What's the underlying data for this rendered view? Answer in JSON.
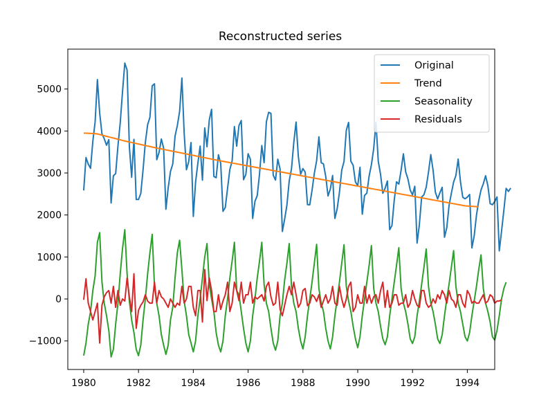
{
  "chart_data": {
    "type": "line",
    "title": "Reconstructed series",
    "xlabel": "",
    "ylabel": "",
    "xlim": [
      1979.42,
      1995.0
    ],
    "ylim": [
      -1680,
      5950
    ],
    "x_ticks": [
      1980,
      1982,
      1984,
      1986,
      1988,
      1990,
      1992,
      1994
    ],
    "x_tick_labels": [
      "1980",
      "1982",
      "1984",
      "1986",
      "1988",
      "1990",
      "1992",
      "1994"
    ],
    "y_ticks": [
      -1000,
      0,
      1000,
      2000,
      3000,
      4000,
      5000
    ],
    "y_tick_labels": [
      "−1000",
      "0",
      "1000",
      "2000",
      "3000",
      "4000",
      "5000"
    ],
    "grid": false,
    "legend_position": "top-right",
    "x_start": 1980.0,
    "x_step_months": 1,
    "num_points": 174,
    "series": [
      {
        "name": "Original",
        "color": "#1f77b4",
        "values": [
          2585,
          3368,
          3210,
          3111,
          3756,
          4216,
          5225,
          4426,
          3932,
          3816,
          3661,
          3795,
          2285,
          2934,
          2985,
          3646,
          4198,
          4935,
          5618,
          5454,
          3624,
          2898,
          3802,
          2369,
          2369,
          2511,
          3079,
          3728,
          4151,
          4326,
          5076,
          5123,
          3316,
          3488,
          3810,
          3594,
          2136,
          2647,
          3036,
          3214,
          3880,
          4128,
          4464,
          5263,
          3949,
          3078,
          3273,
          3726,
          1965,
          2788,
          3236,
          3641,
          2829,
          4074,
          3625,
          4267,
          4517,
          2917,
          2886,
          3434,
          3229,
          2086,
          2178,
          2633,
          3084,
          3287,
          4107,
          3638,
          4130,
          4249,
          2840,
          2963,
          3459,
          3325,
          1917,
          2324,
          2463,
          2976,
          3654,
          3245,
          4217,
          4445,
          4420,
          2946,
          2832,
          3329,
          3093,
          1607,
          1902,
          2237,
          2812,
          3097,
          3722,
          4214,
          3390,
          2970,
          3105,
          3019,
          2246,
          2243,
          2587,
          2992,
          3288,
          3861,
          3246,
          3216,
          2915,
          2453,
          2617,
          2940,
          1917,
          2145,
          2540,
          3067,
          3275,
          4016,
          4205,
          3280,
          3183,
          2787,
          2696,
          3136,
          2018,
          2466,
          2522,
          2928,
          3197,
          3581,
          4207,
          3282,
          2966,
          2517,
          2638,
          2810,
          1650,
          1750,
          2355,
          2790,
          2735,
          3066,
          3458,
          3028,
          2856,
          2591,
          2477,
          2684,
          1330,
          1771,
          2426,
          2483,
          2660,
          3022,
          3438,
          3068,
          2544,
          2381,
          2530,
          2660,
          1470,
          1697,
          2224,
          2514,
          2785,
          2941,
          3331,
          2790,
          2423,
          2386,
          2425,
          2489,
          1216,
          1500,
          1993,
          2341,
          2596,
          2742,
          2934,
          2697,
          2269,
          2244,
          2320,
          2430,
          1145,
          1618,
          2111,
          2634,
          2560,
          2640
        ]
      },
      {
        "name": "Trend",
        "color": "#ff7f0e",
        "values": [
          3950,
          3948,
          3946,
          3943,
          3940,
          3936,
          3931,
          3916,
          3902,
          3888,
          3874,
          3860,
          3846,
          3832,
          3818,
          3804,
          3790,
          3776,
          3762,
          3750,
          3738,
          3726,
          3714,
          3702,
          3690,
          3678,
          3666,
          3654,
          3642,
          3630,
          3618,
          3606,
          3595,
          3584,
          3573,
          3562,
          3551,
          3540,
          3529,
          3518,
          3507,
          3496,
          3485,
          3474,
          3463,
          3452,
          3441,
          3430,
          3419,
          3408,
          3397,
          3386,
          3375,
          3364,
          3353,
          3342,
          3331,
          3320,
          3309,
          3298,
          3288,
          3278,
          3268,
          3258,
          3248,
          3238,
          3228,
          3218,
          3208,
          3198,
          3188,
          3178,
          3168,
          3158,
          3148,
          3138,
          3128,
          3118,
          3108,
          3098,
          3088,
          3078,
          3068,
          3058,
          3048,
          3038,
          3028,
          3018,
          3008,
          2998,
          2988,
          2978,
          2968,
          2958,
          2948,
          2938,
          2928,
          2918,
          2908,
          2898,
          2888,
          2878,
          2868,
          2858,
          2848,
          2838,
          2828,
          2818,
          2808,
          2798,
          2788,
          2778,
          2768,
          2758,
          2748,
          2738,
          2728,
          2718,
          2708,
          2698,
          2688,
          2678,
          2668,
          2658,
          2648,
          2638,
          2628,
          2618,
          2608,
          2598,
          2588,
          2578,
          2568,
          2558,
          2548,
          2538,
          2528,
          2518,
          2508,
          2498,
          2488,
          2478,
          2468,
          2458,
          2448,
          2438,
          2428,
          2418,
          2408,
          2398,
          2388,
          2378,
          2368,
          2358,
          2348,
          2338,
          2328,
          2318,
          2308,
          2298,
          2288,
          2278,
          2268,
          2258,
          2248,
          2238,
          2228,
          2218,
          2214,
          2210,
          2206,
          2202,
          2198,
          2194
        ]
      },
      {
        "name": "Seasonality",
        "color": "#2ca02c",
        "values": [
          -1350,
          -1050,
          -600,
          -300,
          200,
          550,
          1350,
          1580,
          400,
          -100,
          -400,
          -750,
          -1380,
          -1200,
          -600,
          -100,
          600,
          1200,
          1650,
          600,
          -50,
          -500,
          -800,
          -1200,
          -1350,
          -1100,
          -500,
          0,
          600,
          1100,
          1540,
          300,
          -100,
          -400,
          -850,
          -1100,
          -1320,
          -1100,
          -500,
          -200,
          500,
          1100,
          1400,
          700,
          -50,
          -400,
          -850,
          -1050,
          -1260,
          -1000,
          -400,
          0,
          500,
          1000,
          1320,
          350,
          0,
          -300,
          -800,
          -1100,
          -1260,
          -1000,
          -400,
          0,
          500,
          900,
          1350,
          200,
          100,
          -300,
          -700,
          -1050,
          -1260,
          -1000,
          -400,
          0,
          500,
          900,
          1350,
          350,
          -100,
          -300,
          -700,
          -1050,
          -1220,
          -1000,
          -400,
          -100,
          450,
          850,
          1320,
          300,
          -100,
          -300,
          -700,
          -1000,
          -1190,
          -900,
          -400,
          0,
          400,
          850,
          1300,
          250,
          -100,
          -300,
          -700,
          -1000,
          -1190,
          -900,
          -400,
          0,
          400,
          850,
          1290,
          300,
          -50,
          -300,
          -650,
          -950,
          -1160,
          -900,
          -400,
          0,
          400,
          800,
          1270,
          250,
          -100,
          -300,
          -650,
          -950,
          -1090,
          -900,
          -400,
          0,
          400,
          800,
          1220,
          250,
          -100,
          -300,
          -600,
          -950,
          -1060,
          -900,
          -400,
          -50,
          350,
          750,
          1190,
          300,
          -100,
          -300,
          -600,
          -950,
          -1060,
          -850,
          -400,
          0,
          350,
          750,
          1150,
          300,
          -100,
          -300,
          -600,
          -900,
          -1000,
          -800,
          -400,
          -50,
          300,
          700,
          1050,
          250,
          -100,
          -300,
          -550,
          -900,
          -980,
          -750,
          -400,
          0,
          250,
          400
        ]
      },
      {
        "name": "Residuals",
        "color": "#d62728",
        "values": [
          -20,
          480,
          -100,
          -300,
          -500,
          -300,
          -100,
          -1050,
          -150,
          50,
          150,
          200,
          -100,
          300,
          -200,
          200,
          -150,
          0,
          -50,
          500,
          50,
          -300,
          600,
          -700,
          -270,
          -150,
          -70,
          100,
          -50,
          -100,
          -100,
          400,
          -100,
          200,
          50,
          0,
          -100,
          -200,
          0,
          -100,
          -200,
          -100,
          -150,
          300,
          -100,
          0,
          300,
          300,
          -200,
          -400,
          200,
          200,
          -550,
          700,
          -40,
          500,
          200,
          -300,
          -300,
          100,
          -250,
          -50,
          100,
          400,
          -300,
          -100,
          400,
          200,
          -40,
          400,
          -100,
          100,
          100,
          400,
          -100,
          50,
          0,
          50,
          100,
          -50,
          300,
          400,
          50,
          -150,
          -100,
          400,
          -250,
          -400,
          -150,
          100,
          300,
          100,
          400,
          100,
          -200,
          -100,
          200,
          250,
          -160,
          -100,
          100,
          50,
          -60,
          100,
          -200,
          -50,
          100,
          -100,
          0,
          300,
          -100,
          -150,
          300,
          0,
          -200,
          0,
          300,
          400,
          -300,
          -200,
          100,
          -100,
          -100,
          300,
          -100,
          100,
          -100,
          50,
          100,
          -100,
          200,
          400,
          -200,
          200,
          -200,
          -100,
          100,
          100,
          -150,
          -100,
          -100,
          100,
          -200,
          -100,
          200,
          0,
          -150,
          -200,
          200,
          200,
          -100,
          -200,
          -150,
          0,
          -100,
          100,
          0,
          200,
          100,
          -100,
          200,
          0,
          -50,
          -200,
          100,
          100,
          -100,
          -200,
          200,
          100,
          -100,
          -50,
          -100,
          -100,
          0,
          100,
          -100,
          -50,
          100,
          50,
          -100,
          -50,
          -50,
          -20
        ]
      }
    ]
  }
}
